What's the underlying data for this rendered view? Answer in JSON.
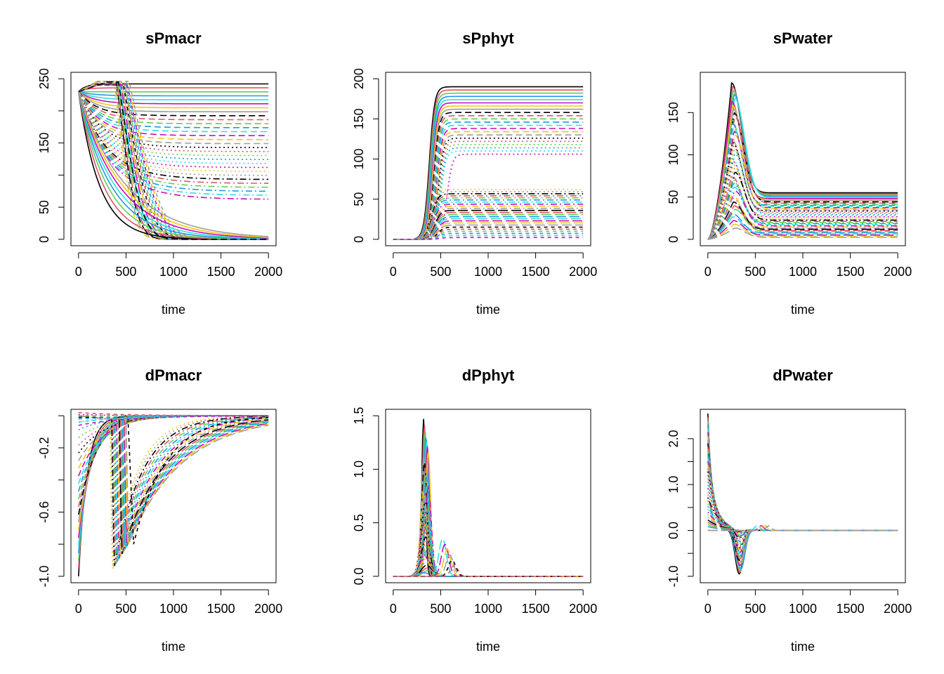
{
  "figure": {
    "layout": "2 rows x 3 columns of multi-run line plots (many simulation runs overlaid, lty cycling solid/dashed/dotted/dotdash/longdash, R default palette)"
  },
  "palette": [
    "#000000",
    "#DF536B",
    "#61D04F",
    "#2297E6",
    "#28E2E5",
    "#CD0BBC",
    "#F5C710",
    "#9E9E9E"
  ],
  "chart_data": [
    {
      "id": "sPmacr",
      "type": "line",
      "title": "sPmacr",
      "xlabel": "time",
      "ylabel": "",
      "xlim": [
        0,
        2000
      ],
      "ylim": [
        0,
        250
      ],
      "xticks": [
        0,
        500,
        1000,
        1500,
        2000
      ],
      "xticklabels": [
        "0",
        "500",
        "1000",
        "1500",
        "2000"
      ],
      "yticks": [
        0,
        50,
        100,
        150,
        200,
        250
      ],
      "yticklabels": [
        "0",
        "50",
        "",
        "150",
        "",
        "250"
      ],
      "series_summary": "About 50 runs start at ~230. Slowly-declining runs plateau at finals from ~240 down to ~60; a second family collapses steeply after t~400-500 toward 0 by t~1800; the lowest run decays exponentially to 0 by t~1500.",
      "representative_series": [
        {
          "name": "plateau_high",
          "x": [
            0,
            200,
            400,
            800,
            2000
          ],
          "y": [
            230,
            238,
            241,
            242,
            242
          ]
        },
        {
          "name": "plateau_mid",
          "x": [
            0,
            200,
            400,
            800,
            2000
          ],
          "y": [
            230,
            200,
            175,
            160,
            160
          ]
        },
        {
          "name": "plateau_low",
          "x": [
            0,
            200,
            400,
            800,
            2000
          ],
          "y": [
            230,
            140,
            95,
            65,
            62
          ]
        },
        {
          "name": "fast_decay",
          "x": [
            0,
            100,
            300,
            600,
            1000,
            1500
          ],
          "y": [
            230,
            160,
            70,
            20,
            5,
            0
          ]
        },
        {
          "name": "late_collapse",
          "x": [
            0,
            300,
            420,
            600,
            900,
            1300,
            1800
          ],
          "y": [
            230,
            240,
            245,
            140,
            40,
            10,
            0
          ]
        }
      ]
    },
    {
      "id": "sPphyt",
      "type": "line",
      "title": "sPphyt",
      "xlabel": "time",
      "ylabel": "",
      "xlim": [
        0,
        2000
      ],
      "ylim": [
        0,
        200
      ],
      "xticks": [
        0,
        500,
        1000,
        1500,
        2000
      ],
      "xticklabels": [
        "0",
        "500",
        "1000",
        "1500",
        "2000"
      ],
      "yticks": [
        0,
        50,
        100,
        150,
        200
      ],
      "yticklabels": [
        "0",
        "50",
        "100",
        "150",
        "200"
      ],
      "series_summary": "Runs stay at 0 until t~250, then rise sigmoidally between t~300-600 to plateaus spread from ~105 to ~190 (upper group) and from ~3 to ~62 (lower group).",
      "representative_series": [
        {
          "name": "upper_top",
          "x": [
            0,
            250,
            350,
            450,
            550,
            2000
          ],
          "y": [
            0,
            0,
            60,
            160,
            190,
            190
          ]
        },
        {
          "name": "upper_low",
          "x": [
            0,
            250,
            400,
            550,
            700,
            2000
          ],
          "y": [
            0,
            0,
            50,
            80,
            105,
            105
          ]
        },
        {
          "name": "lower_top",
          "x": [
            0,
            250,
            400,
            550,
            2000
          ],
          "y": [
            0,
            0,
            40,
            62,
            62
          ]
        },
        {
          "name": "lower_bottom",
          "x": [
            0,
            250,
            400,
            550,
            2000
          ],
          "y": [
            0,
            0,
            2,
            3,
            3
          ]
        }
      ]
    },
    {
      "id": "sPwater",
      "type": "line",
      "title": "sPwater",
      "xlabel": "time",
      "ylabel": "",
      "xlim": [
        0,
        2000
      ],
      "ylim": [
        0,
        190
      ],
      "xticks": [
        0,
        500,
        1000,
        1500,
        2000
      ],
      "xticklabels": [
        "0",
        "500",
        "1000",
        "1500",
        "2000"
      ],
      "yticks": [
        0,
        50,
        100,
        150
      ],
      "yticklabels": [
        "0",
        "50",
        "100",
        "150"
      ],
      "series_summary": "Runs start near 0, peak around t~250-300 at values from ~10 up to ~185, then decline and settle at plateaus between ~2 and ~55 after t~700.",
      "representative_series": [
        {
          "name": "peak_high",
          "x": [
            0,
            150,
            270,
            400,
            550,
            800,
            2000
          ],
          "y": [
            0,
            120,
            185,
            130,
            75,
            55,
            55
          ]
        },
        {
          "name": "peak_mid",
          "x": [
            0,
            150,
            270,
            400,
            600,
            2000
          ],
          "y": [
            0,
            45,
            65,
            45,
            25,
            22
          ]
        },
        {
          "name": "peak_low",
          "x": [
            0,
            150,
            270,
            400,
            600,
            2000
          ],
          "y": [
            0,
            8,
            12,
            8,
            3,
            2
          ]
        }
      ]
    },
    {
      "id": "dPmacr",
      "type": "line",
      "title": "dPmacr",
      "xlabel": "time",
      "ylabel": "",
      "xlim": [
        0,
        2000
      ],
      "ylim": [
        -1.0,
        0.0
      ],
      "xticks": [
        0,
        500,
        1000,
        1500,
        2000
      ],
      "xticklabels": [
        "0",
        "500",
        "1000",
        "1500",
        "2000"
      ],
      "yticks": [
        -1.0,
        -0.8,
        -0.6,
        -0.4,
        -0.2,
        0.0
      ],
      "yticklabels": [
        "-1.0",
        "",
        "-0.6",
        "",
        "-0.2",
        ""
      ],
      "series_summary": "Derivatives start between -1.0 and ~0.02 and relax to 0; a family drops sharply to about -0.97 near t~360 and recovers toward 0 by t~1500-2000.",
      "representative_series": [
        {
          "name": "early_min",
          "x": [
            0,
            50,
            150,
            300,
            600,
            1000
          ],
          "y": [
            -1.0,
            -0.6,
            -0.3,
            -0.12,
            -0.03,
            0
          ]
        },
        {
          "name": "near_zero",
          "x": [
            0,
            200,
            400,
            800,
            2000
          ],
          "y": [
            0.02,
            0.0,
            -0.01,
            0,
            0
          ]
        },
        {
          "name": "late_spike",
          "x": [
            0,
            300,
            360,
            380,
            500,
            800,
            1200,
            1600
          ],
          "y": [
            0,
            -0.02,
            -0.97,
            -0.7,
            -0.45,
            -0.18,
            -0.05,
            0
          ]
        },
        {
          "name": "yellow_late",
          "x": [
            0,
            400,
            600,
            700,
            1000,
            1400,
            1800
          ],
          "y": [
            0,
            -0.02,
            -0.8,
            -0.55,
            -0.22,
            -0.06,
            0
          ]
        }
      ]
    },
    {
      "id": "dPphyt",
      "type": "line",
      "title": "dPphyt",
      "xlabel": "time",
      "ylabel": "",
      "xlim": [
        0,
        2000
      ],
      "ylim": [
        0,
        1.5
      ],
      "xticks": [
        0,
        500,
        1000,
        1500,
        2000
      ],
      "xticklabels": [
        "0",
        "500",
        "1000",
        "1500",
        "2000"
      ],
      "yticks": [
        0,
        0.5,
        1.0,
        1.5
      ],
      "yticklabels": [
        "0.0",
        "0.5",
        "1.0",
        "1.5"
      ],
      "series_summary": "Zero until t~250, then narrow peaks centred near t~330-350 with heights up to ~1.45; smaller secondary bumps near t~500-650 (up to ~0.35); back to 0 after t~800.",
      "representative_series": [
        {
          "name": "peak_max",
          "x": [
            0,
            250,
            300,
            335,
            370,
            420,
            500,
            2000
          ],
          "y": [
            0,
            0,
            0.6,
            1.45,
            0.9,
            0.25,
            0.02,
            0
          ]
        },
        {
          "name": "peak_mid",
          "x": [
            0,
            250,
            320,
            350,
            400,
            500,
            2000
          ],
          "y": [
            0,
            0,
            0.5,
            1.0,
            0.5,
            0.05,
            0
          ]
        },
        {
          "name": "late_bump",
          "x": [
            0,
            400,
            550,
            620,
            700,
            800,
            2000
          ],
          "y": [
            0,
            0,
            0.2,
            0.33,
            0.15,
            0.01,
            0
          ]
        }
      ]
    },
    {
      "id": "dPwater",
      "type": "line",
      "title": "dPwater",
      "xlabel": "time",
      "ylabel": "",
      "xlim": [
        0,
        2000
      ],
      "ylim": [
        -1.0,
        2.5
      ],
      "xticks": [
        0,
        500,
        1000,
        1500,
        2000
      ],
      "xticklabels": [
        "0",
        "500",
        "1000",
        "1500",
        "2000"
      ],
      "yticks": [
        -1.0,
        -0.5,
        0.0,
        0.5,
        1.0,
        1.5,
        2.0
      ],
      "yticklabels": [
        "-1.0",
        "",
        "0.0",
        "",
        "1.0",
        "",
        "2.0"
      ],
      "series_summary": "Start at up to ~2.5 at t=0, decay rapidly to ~0 by t~250, dip negative with minimum ~-0.95 near t~330, then recover to 0 by t~800.",
      "representative_series": [
        {
          "name": "start_max",
          "x": [
            0,
            20,
            60,
            120,
            200,
            260,
            330,
            420,
            550,
            800,
            2000
          ],
          "y": [
            2.5,
            1.5,
            0.8,
            0.35,
            0.1,
            -0.1,
            -0.95,
            -0.4,
            -0.1,
            0,
            0
          ]
        },
        {
          "name": "start_mid",
          "x": [
            0,
            40,
            120,
            250,
            330,
            450,
            800,
            2000
          ],
          "y": [
            1.2,
            0.6,
            0.2,
            0.0,
            -0.5,
            -0.15,
            0,
            0
          ]
        },
        {
          "name": "start_low",
          "x": [
            0,
            100,
            250,
            350,
            500,
            2000
          ],
          "y": [
            0.3,
            0.1,
            0.0,
            -0.15,
            0.0,
            0
          ]
        }
      ]
    }
  ]
}
